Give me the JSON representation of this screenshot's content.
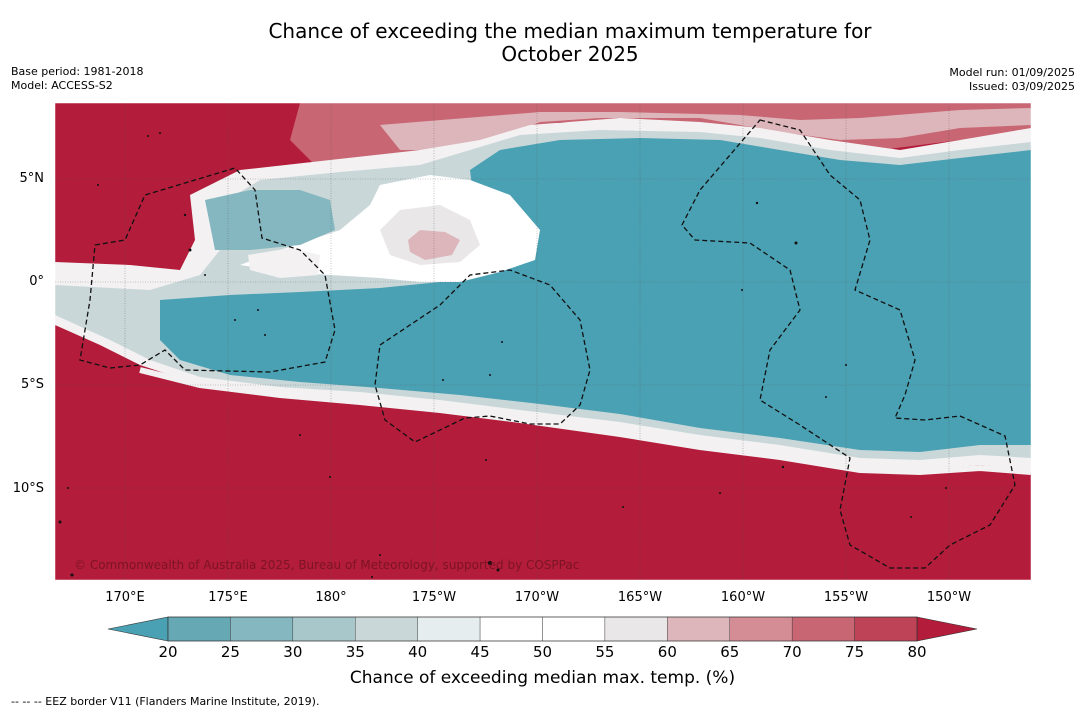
{
  "title_line1": "Chance of exceeding the median maximum temperature for",
  "title_line2": "October 2025",
  "base_period": "Base period: 1981-2018",
  "model": "Model: ACCESS-S2",
  "model_run": "Model run: 01/09/2025",
  "issued": "Issued: 03/09/2025",
  "lat_labels": [
    "5°N",
    "0°",
    "5°S",
    "10°S"
  ],
  "lon_labels": [
    "170°E",
    "175°E",
    "180°",
    "175°W",
    "170°W",
    "165°W",
    "160°W",
    "155°W",
    "150°W"
  ],
  "copyright": "© Commonwealth of Australia 2025, Bureau of Meteorology, supported by COSPPac",
  "colorbar": {
    "ticks": [
      "20",
      "25",
      "30",
      "35",
      "40",
      "45",
      "50",
      "55",
      "60",
      "65",
      "70",
      "75",
      "80"
    ],
    "colors": [
      "#66a9b5",
      "#85b7c1",
      "#a7c7cb",
      "#c9d7d9",
      "#e6edef",
      "#ffffff",
      "#ffffff",
      "#e9e7e8",
      "#ddb6bb",
      "#d48c95",
      "#c86673",
      "#bf4356"
    ],
    "low_color": "#4aa1b3",
    "high_color": "#b31c3a",
    "title": "Chance of exceeding median max. temp. (%)"
  },
  "footnote": "--  --  -- EEZ border V11 (Flanders Marine Institute, 2019)."
}
